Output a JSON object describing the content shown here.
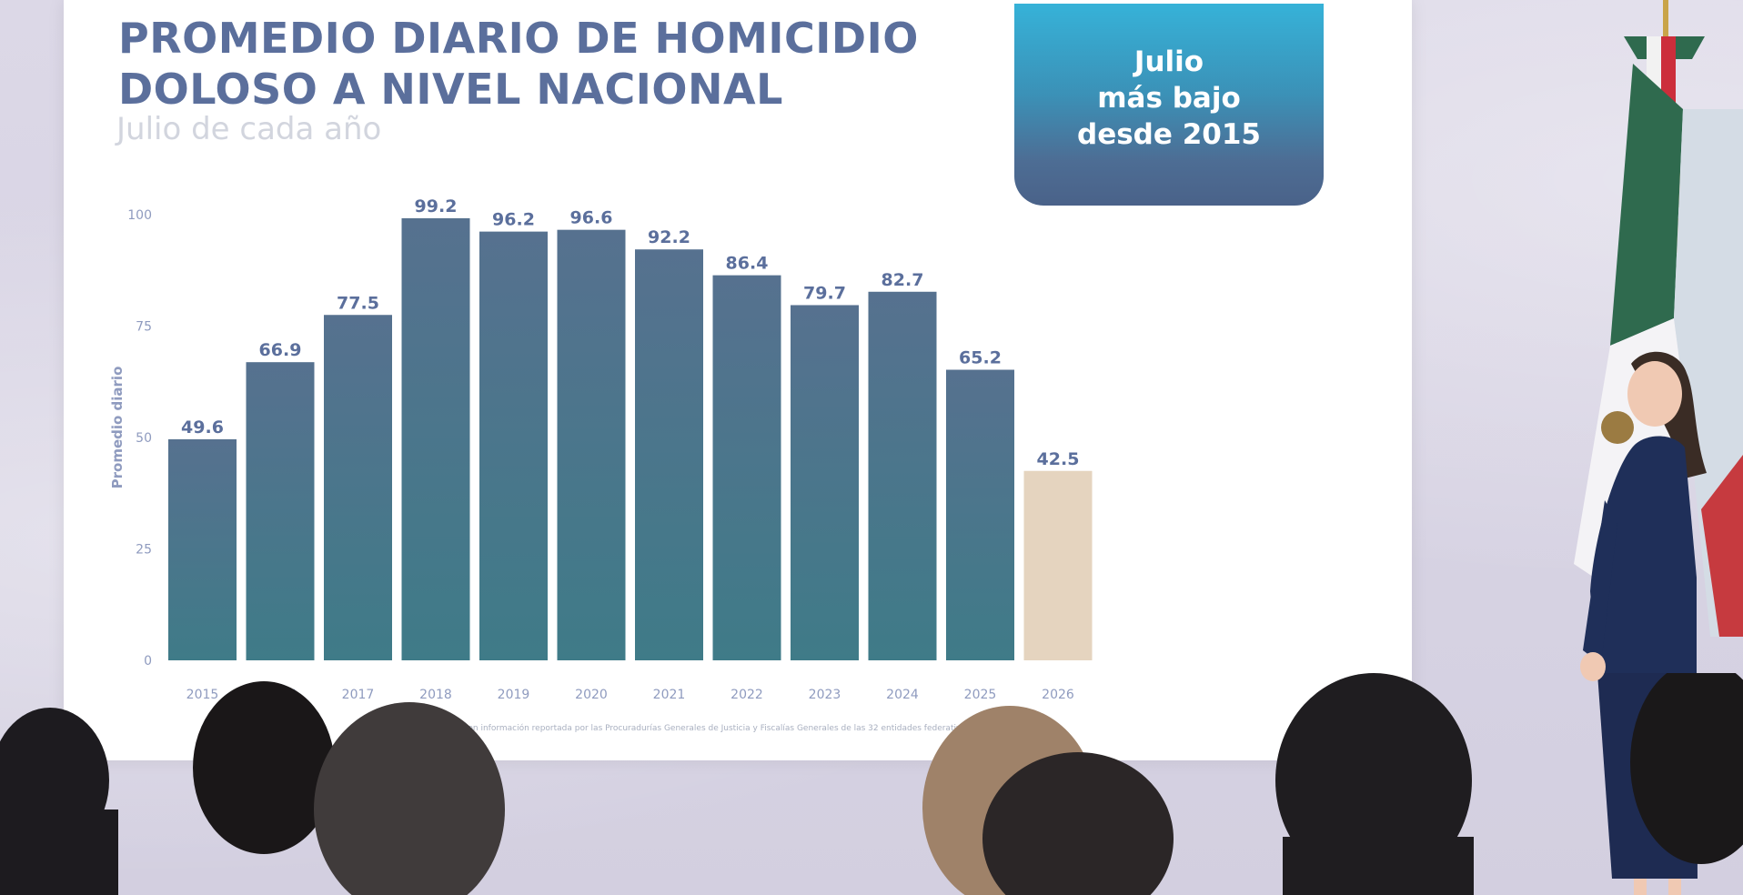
{
  "slide": {
    "title_line1": "PROMEDIO DIARIO DE HOMICIDIO",
    "title_line2": "DOLOSO A NIVEL NACIONAL",
    "subtitle": "Julio de cada año",
    "callout_line1": "Julio",
    "callout_line2": "más bajo",
    "callout_line3": "desde 2015",
    "source": "Fuente: SESNSP con información reportada por las Procuradurías Generales de Justicia y Fiscalías Generales de las 32 entidades federativas."
  },
  "chart_data": {
    "type": "bar",
    "title": "PROMEDIO DIARIO DE HOMICIDIO DOLOSO A NIVEL NACIONAL",
    "subtitle": "Julio de cada año",
    "xlabel": "",
    "ylabel": "Promedio diario",
    "categories": [
      "2015",
      "2016",
      "2017",
      "2018",
      "2019",
      "2020",
      "2021",
      "2022",
      "2023",
      "2024",
      "2025",
      "2026"
    ],
    "values": [
      49.6,
      66.9,
      77.5,
      99.2,
      96.2,
      96.6,
      92.2,
      86.4,
      79.7,
      82.7,
      65.2,
      42.5
    ],
    "value_labels": [
      "49.6",
      "66.9",
      "77.5",
      "99.2",
      "96.2",
      "96.6",
      "92.2",
      "86.4",
      "79.7",
      "82.7",
      "65.2",
      "42.5"
    ],
    "yticks": [
      0,
      25,
      50,
      75,
      100
    ],
    "ytick_labels": [
      "0",
      "25",
      "50",
      "75",
      "100"
    ],
    "ylim": [
      0,
      100
    ],
    "grid": false,
    "legend": "none",
    "colors": {
      "bar": "#4b7595",
      "bar_top": "#56718f",
      "bar_bottom": "#3f7b88",
      "highlight": "#e5d4bf",
      "value_label": "#5b6f9c",
      "axis_label": "#8f9bbf"
    },
    "highlight_index": 11
  }
}
